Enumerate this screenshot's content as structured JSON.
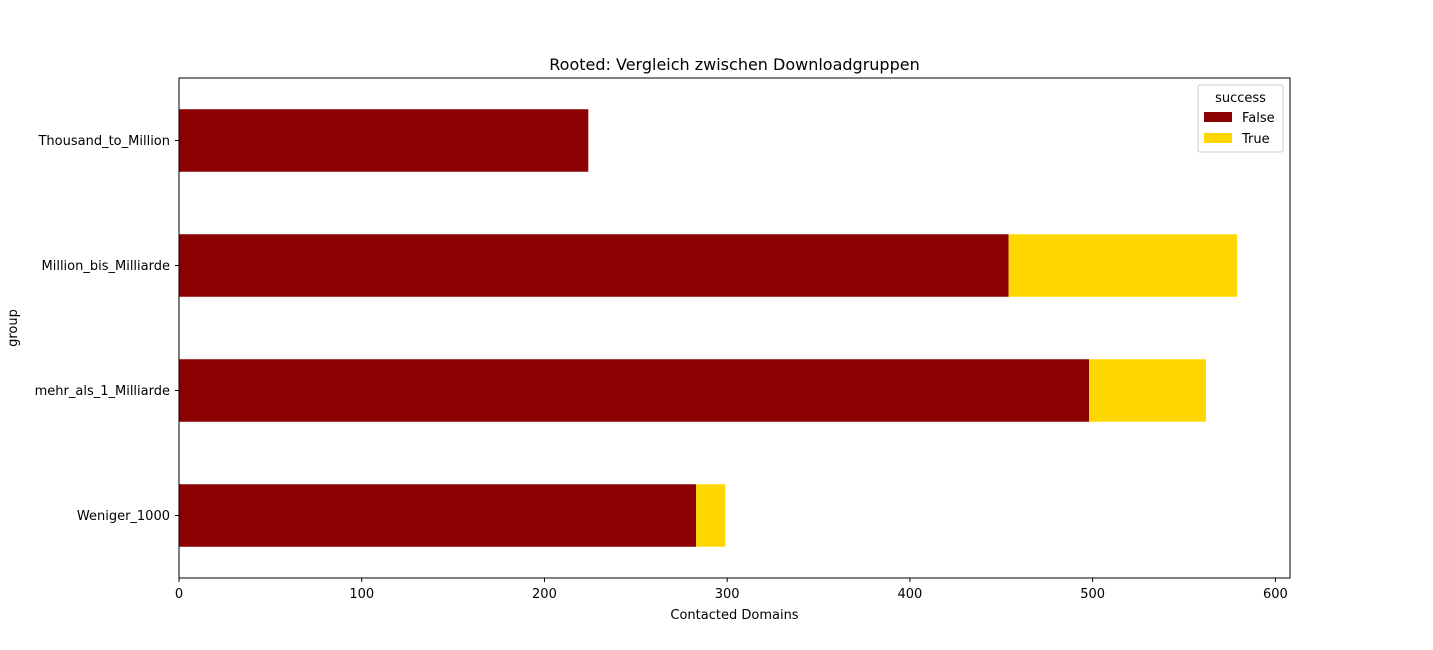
{
  "chart_data": {
    "type": "bar",
    "orientation": "horizontal",
    "stacked": true,
    "title": "Rooted: Vergleich zwischen Downloadgruppen",
    "xlabel": "Contacted Domains",
    "ylabel": "group",
    "categories": [
      "Weniger_1000",
      "mehr_als_1_Milliarde",
      "Million_bis_Milliarde",
      "Thousand_to_Million"
    ],
    "series": [
      {
        "name": "False",
        "color": "#8b0000",
        "values": [
          283,
          498,
          454,
          224
        ]
      },
      {
        "name": "True",
        "color": "#ffd700",
        "values": [
          16,
          64,
          125,
          0
        ]
      }
    ],
    "xlim": [
      0,
      608
    ],
    "xticks": [
      0,
      100,
      200,
      300,
      400,
      500,
      600
    ],
    "legend": {
      "title": "success",
      "position": "top-right"
    },
    "grid": false
  }
}
